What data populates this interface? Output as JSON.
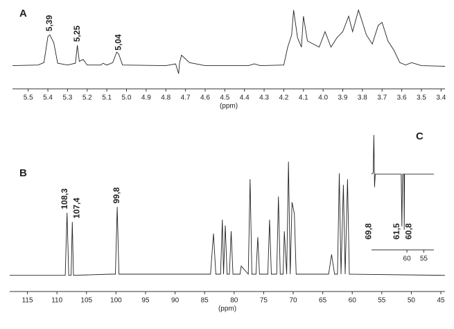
{
  "chart_data": [
    {
      "type": "line",
      "panel_label": "A",
      "xlabel": "(ppm)",
      "xlim": [
        5.58,
        3.38
      ],
      "ylim": [
        -10,
        100
      ],
      "xticks": [
        5.5,
        5.4,
        5.3,
        5.2,
        5.1,
        {
          "value": 5,
          "label": "5.0"
        },
        4.9,
        4.8,
        4.7,
        4.6,
        4.5,
        4.4,
        4.3,
        4.2,
        4.1,
        {
          "value": 4,
          "label": "4.0"
        },
        3.9,
        3.8,
        3.7,
        3.6,
        3.5,
        3.4
      ],
      "x": [
        5.58,
        5.45,
        5.42,
        5.4,
        5.39,
        5.37,
        5.35,
        5.3,
        5.26,
        5.25,
        5.24,
        5.22,
        5.2,
        5.13,
        5.12,
        5.1,
        5.07,
        5.05,
        5.04,
        5.02,
        4.8,
        4.75,
        4.735,
        4.73,
        4.72,
        4.68,
        4.6,
        4.38,
        4.35,
        4.32,
        4.2,
        4.18,
        4.16,
        4.15,
        4.13,
        4.11,
        4.1,
        4.08,
        4.05,
        4.02,
        3.99,
        3.96,
        3.93,
        3.9,
        3.87,
        3.85,
        3.82,
        3.8,
        3.78,
        3.75,
        3.72,
        3.7,
        3.67,
        3.64,
        3.61,
        3.58,
        3.55,
        3.5,
        3.38
      ],
      "values": [
        5,
        6,
        10,
        52,
        55,
        42,
        9,
        6,
        9,
        38,
        12,
        15,
        6,
        6,
        9,
        6,
        10,
        27,
        24,
        6,
        5,
        8,
        -8,
        10,
        22,
        10,
        5,
        5,
        8,
        5,
        6,
        35,
        55,
        95,
        50,
        35,
        85,
        45,
        40,
        35,
        60,
        35,
        50,
        60,
        85,
        60,
        95,
        75,
        55,
        40,
        70,
        75,
        45,
        30,
        10,
        6,
        10,
        5,
        4
      ],
      "annotations": [
        {
          "x": 5.39,
          "label": "5,39"
        },
        {
          "x": 5.25,
          "label": "5,25"
        },
        {
          "x": 5.04,
          "label": "5,04"
        }
      ]
    },
    {
      "type": "line",
      "panel_label": "B",
      "xlabel": "(ppm)",
      "xlim": [
        118,
        44.3
      ],
      "ylim": [
        0,
        100
      ],
      "xticks": [
        115,
        110,
        105,
        100,
        95,
        90,
        85,
        80,
        75,
        70,
        65,
        60,
        55,
        50,
        45
      ],
      "x": [
        118,
        108.6,
        108.3,
        108.0,
        107.6,
        107.4,
        107.2,
        101,
        100.1,
        99.8,
        99.5,
        84,
        83.5,
        83.1,
        82.3,
        82,
        81.8,
        81.5,
        81.2,
        80.8,
        80.5,
        80.2,
        79,
        78.8,
        77.6,
        77.3,
        77,
        76.3,
        76,
        75.7,
        74.3,
        74,
        73.7,
        72.8,
        72.5,
        72.2,
        71.7,
        71.5,
        71.1,
        70.8,
        70.5,
        70.2,
        69.8,
        69.5,
        64,
        63.5,
        63,
        62.5,
        62.2,
        61.9,
        61.5,
        61.2,
        60.8,
        60.5,
        44.3
      ],
      "values": [
        2,
        2,
        56,
        2,
        2,
        48,
        2,
        3,
        3,
        61,
        3,
        3,
        38,
        3,
        3,
        50,
        3,
        45,
        3,
        3,
        40,
        3,
        3,
        10,
        3,
        85,
        3,
        3,
        35,
        3,
        3,
        50,
        3,
        3,
        70,
        3,
        3,
        40,
        3,
        100,
        3,
        65,
        55,
        3,
        3,
        20,
        3,
        3,
        90,
        3,
        80,
        3,
        85,
        3,
        2
      ],
      "annotations": [
        {
          "x": 108.3,
          "label": "108,3"
        },
        {
          "x": 107.4,
          "label": "107,4"
        },
        {
          "x": 99.8,
          "label": "99,8"
        }
      ]
    },
    {
      "type": "line",
      "panel_label": "C",
      "xlim": [
        70.5,
        52
      ],
      "ylim": [
        -100,
        70
      ],
      "xticks": [
        60,
        55
      ],
      "x": [
        70.5,
        70,
        69.8,
        69.6,
        69.4,
        65,
        61.7,
        61.5,
        61.3,
        60.9,
        60.8,
        60.7,
        52
      ],
      "values": [
        0,
        2,
        60,
        -20,
        0,
        0,
        0,
        -80,
        0,
        0,
        -85,
        0,
        0
      ],
      "annotations": [
        {
          "x": 69.8,
          "label": "69,8"
        },
        {
          "x": 61.5,
          "label": "61,5"
        },
        {
          "x": 60.8,
          "label": "60,8"
        }
      ]
    }
  ]
}
